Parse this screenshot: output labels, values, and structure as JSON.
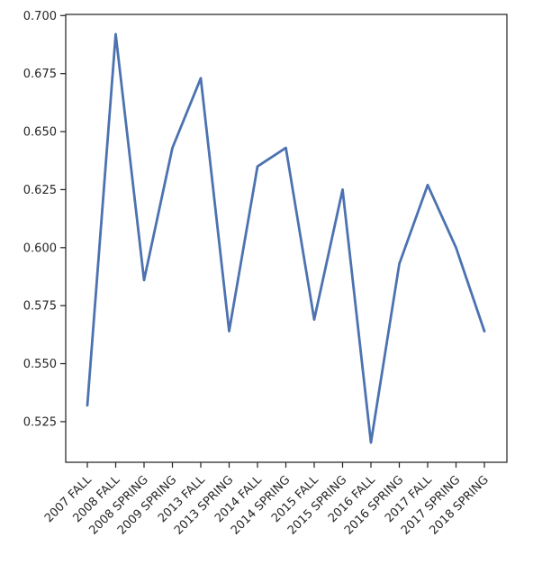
{
  "chart_data": {
    "type": "line",
    "categories": [
      "2007 FALL",
      "2008 FALL",
      "2008 SPRING",
      "2009 SPRING",
      "2013 FALL",
      "2013 SPRING",
      "2014 FALL",
      "2014 SPRING",
      "2015 FALL",
      "2015 SPRING",
      "2016 FALL",
      "2016 SPRING",
      "2017 FALL",
      "2017 SPRING",
      "2018 SPRING"
    ],
    "series": [
      {
        "values": [
          0.532,
          0.692,
          0.586,
          0.643,
          0.673,
          0.564,
          0.635,
          0.643,
          0.569,
          0.625,
          0.516,
          0.593,
          0.627,
          0.6,
          0.564
        ],
        "color": "#4c72b0"
      }
    ],
    "yticks": [
      "0.525",
      "0.550",
      "0.575",
      "0.600",
      "0.625",
      "0.650",
      "0.675",
      "0.700"
    ],
    "ylim": [
      0.5075,
      0.7005
    ],
    "grid": false,
    "title": "",
    "xlabel": "",
    "ylabel": ""
  }
}
